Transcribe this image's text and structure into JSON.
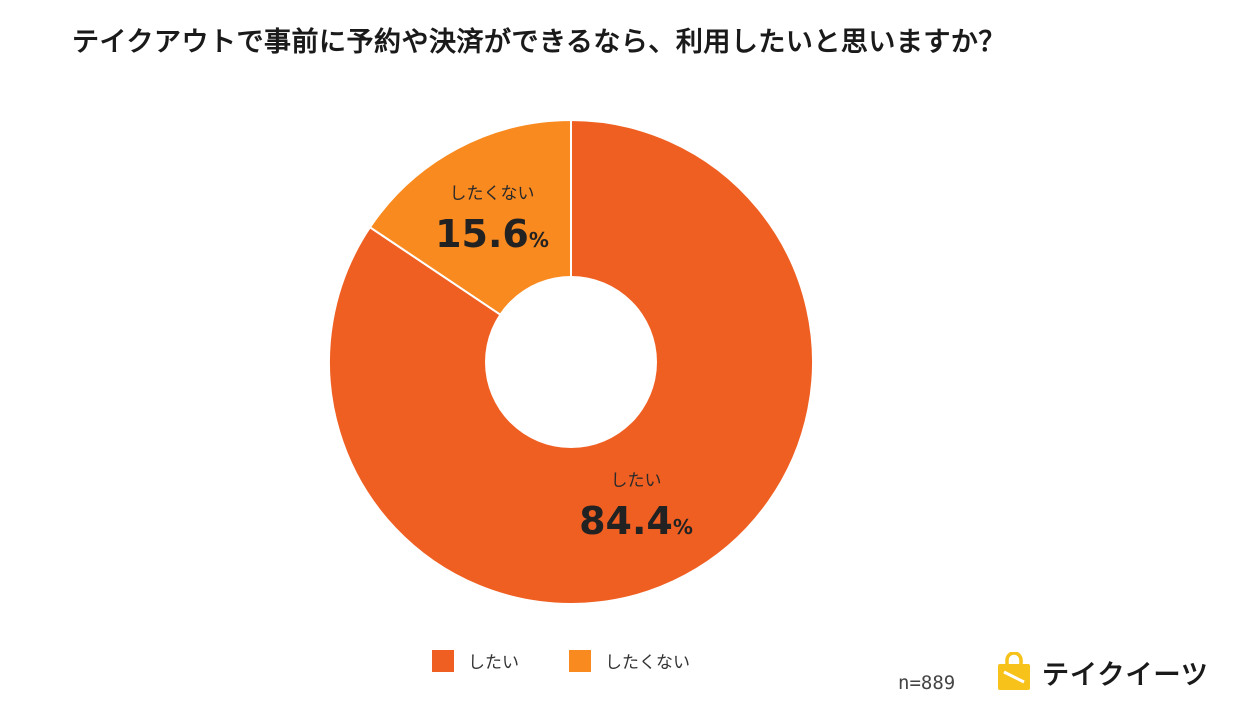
{
  "title": "テイクアウトで事前に予約や決済ができるなら、利用したいと思いますか？",
  "colors": {
    "want": "#f05f22",
    "not_want": "#f98a1f",
    "hole": "#ffffff",
    "text": "#1a1a1a"
  },
  "chart_data": {
    "type": "pie",
    "donut": true,
    "categories": [
      "したい",
      "したくない"
    ],
    "values": [
      84.4,
      15.6
    ],
    "value_suffix": "%",
    "labels_on_slices": true,
    "legend_position": "bottom"
  },
  "legend": {
    "items": [
      {
        "label": "したい"
      },
      {
        "label": "したくない"
      }
    ]
  },
  "footer": {
    "sample_size": "n=889",
    "brand_name": "テイクイーツ",
    "brand_icon": "shopping-bag-icon"
  }
}
